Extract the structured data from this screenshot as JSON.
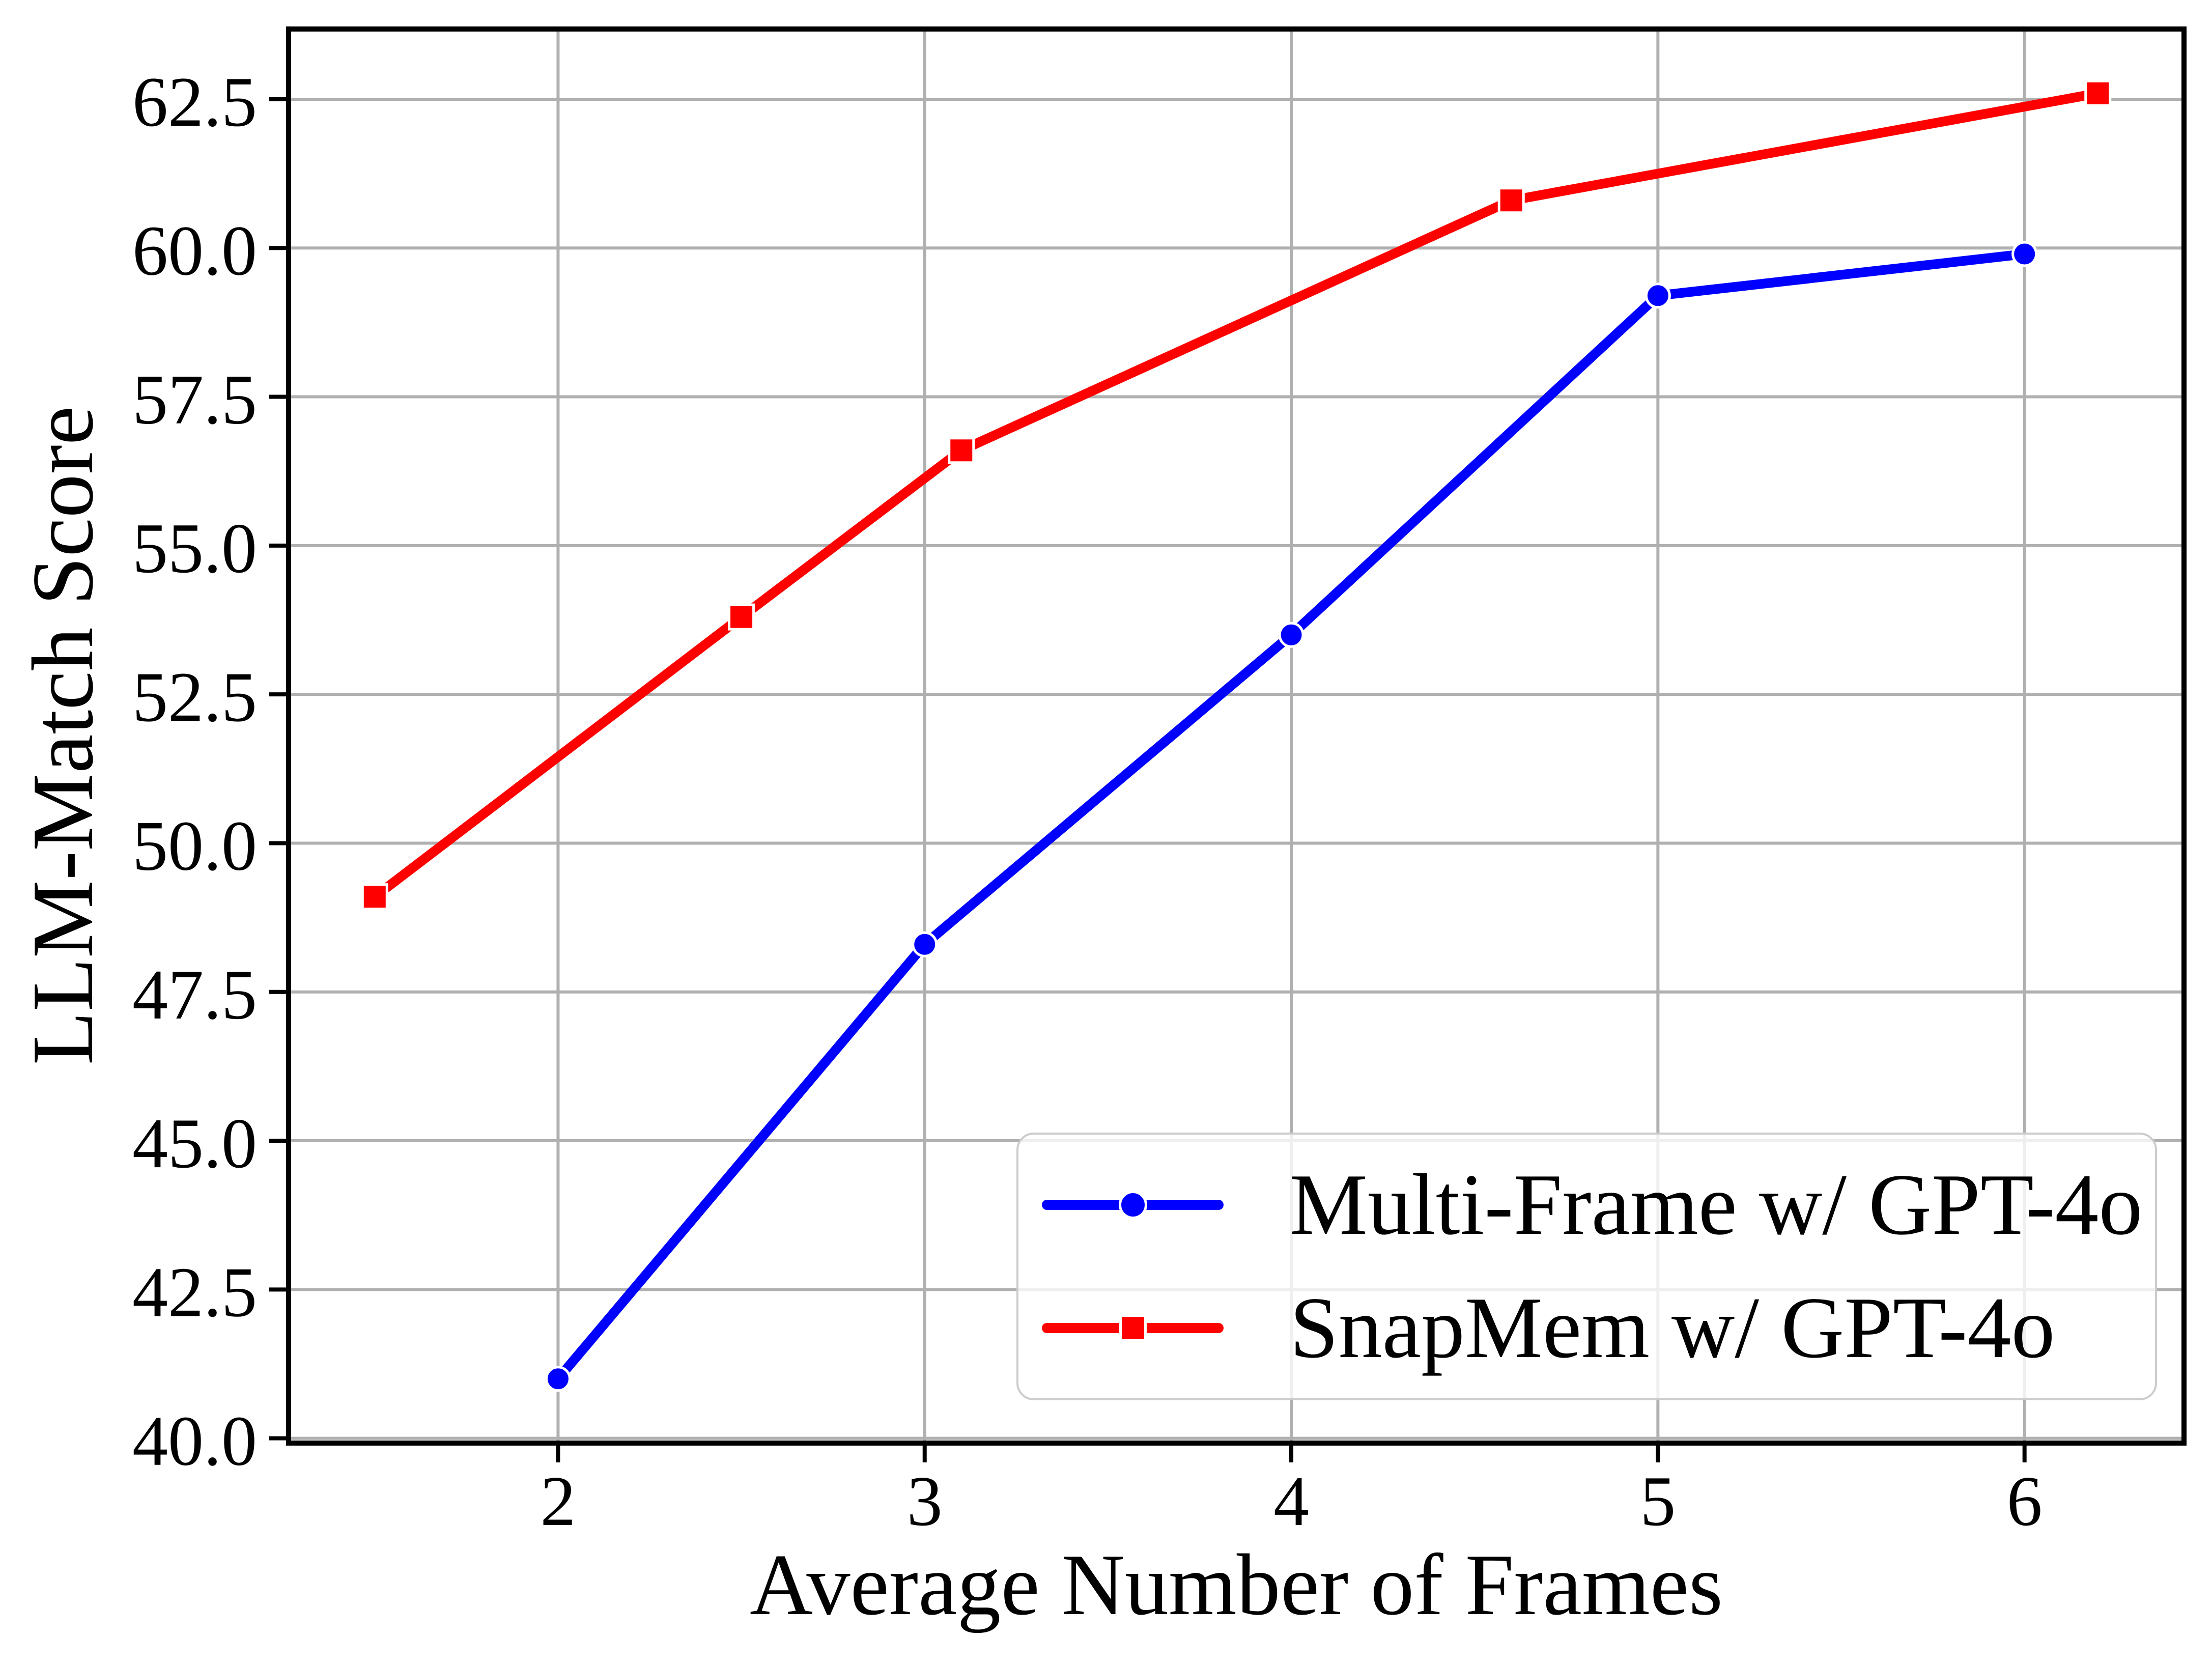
{
  "chart_data": {
    "type": "line",
    "title": "",
    "xlabel": "Average Number of Frames",
    "ylabel": "LLM-Match Score",
    "xlim": [
      1.265,
      6.435
    ],
    "ylim": [
      39.92,
      63.68
    ],
    "grid": true,
    "legend_position": "lower right",
    "x_ticks": [
      2,
      3,
      4,
      5,
      6
    ],
    "x_tick_labels": [
      "2",
      "3",
      "4",
      "5",
      "6"
    ],
    "y_ticks": [
      40.0,
      42.5,
      45.0,
      47.5,
      50.0,
      52.5,
      55.0,
      57.5,
      60.0,
      62.5
    ],
    "y_tick_labels": [
      "40.0",
      "42.5",
      "45.0",
      "47.5",
      "50.0",
      "52.5",
      "55.0",
      "57.5",
      "60.0",
      "62.5"
    ],
    "series": [
      {
        "name": "Multi-Frame w/ GPT-4o",
        "color": "#0000ff",
        "marker": "circle",
        "x": [
          2,
          3,
          4,
          5,
          6
        ],
        "y": [
          41.0,
          48.3,
          53.5,
          59.2,
          59.9
        ]
      },
      {
        "name": "SnapMem w/ GPT-4o",
        "color": "#ff0000",
        "marker": "square",
        "x": [
          1.5,
          2.5,
          3.1,
          4.6,
          6.2
        ],
        "y": [
          49.1,
          53.8,
          56.6,
          60.8,
          62.6
        ]
      }
    ]
  },
  "colors": {
    "grid": "#b0b0b0",
    "spine": "#000000",
    "legend_border": "#cccccc",
    "background": "#ffffff",
    "series_blue": "#0000ff",
    "series_red": "#ff0000"
  }
}
